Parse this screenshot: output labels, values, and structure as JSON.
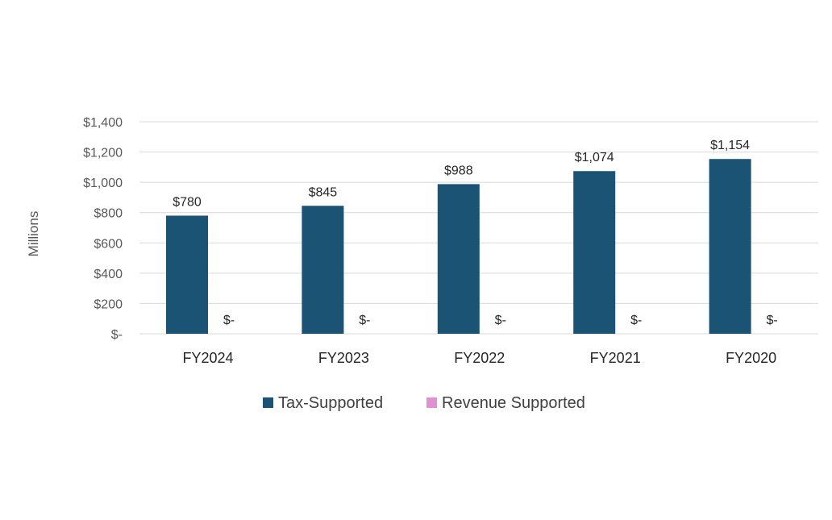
{
  "chart_data": {
    "type": "bar",
    "title": "",
    "xlabel": "",
    "ylabel": "Millions",
    "ylim": [
      0,
      1400
    ],
    "ytick_step": 200,
    "ytick_labels": [
      "$-",
      "$200",
      "$400",
      "$600",
      "$800",
      "$1,000",
      "$1,200",
      "$1,400"
    ],
    "grid": true,
    "legend_position": "bottom",
    "categories": [
      "FY2024",
      "FY2023",
      "FY2022",
      "FY2021",
      "FY2020"
    ],
    "series": [
      {
        "name": "Tax-Supported",
        "color": "#1b5374",
        "values": [
          780,
          845,
          988,
          1074,
          1154
        ],
        "data_labels": [
          "$780",
          "$845",
          "$988",
          "$1,074",
          "$1,154"
        ]
      },
      {
        "name": "Revenue Supported",
        "color": "#e38fd4",
        "values": [
          0,
          0,
          0,
          0,
          0
        ],
        "data_labels": [
          "$-",
          "$-",
          "$-",
          "$-",
          "$-"
        ]
      }
    ]
  }
}
